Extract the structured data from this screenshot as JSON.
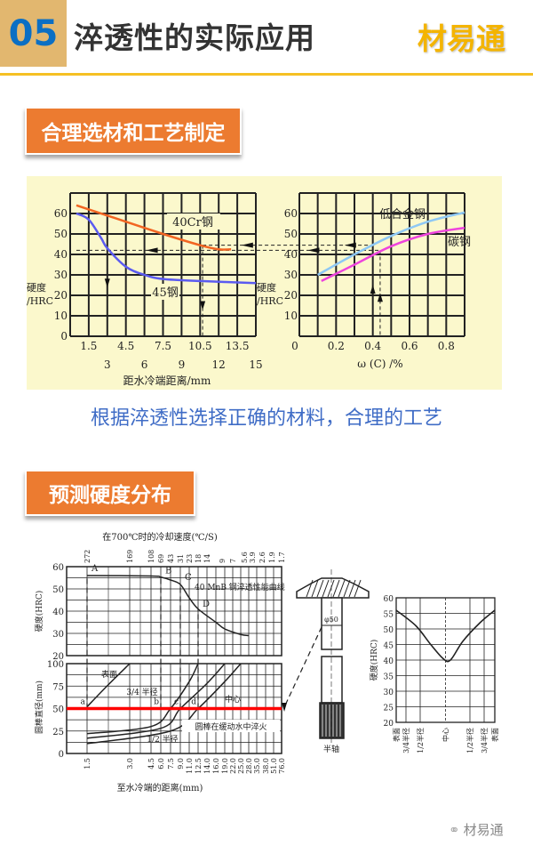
{
  "header": {
    "number": "05",
    "title": "淬透性的实际应用",
    "logo": "材易通",
    "accent": "#f5c024",
    "number_color": "#0b6fc4"
  },
  "section1": {
    "badge": "合理选材和工艺制定",
    "caption": "根据淬透性选择正确的材料，合理的工艺"
  },
  "section2": {
    "badge": "预测硬度分布"
  },
  "footer": {
    "icon": "wechat-icon",
    "label": "材易通"
  },
  "chart_data": [
    {
      "type": "line",
      "ylabel_lines": [
        "硬度",
        "/HRC"
      ],
      "xlabel": "距水冷端距离/mm",
      "x_ticks_row1": [
        "1.5",
        "4.5",
        "7.5",
        "10.5",
        "13.5"
      ],
      "x_ticks_row2": [
        "3",
        "6",
        "9",
        "12",
        "15"
      ],
      "y_ticks": [
        "0",
        "10",
        "20",
        "30",
        "40",
        "50",
        "60"
      ],
      "xlim": [
        0,
        15
      ],
      "ylim": [
        0,
        70
      ],
      "grid": true,
      "series": [
        {
          "name": "40Cr钢",
          "color": "#f26522",
          "x": [
            0.5,
            3,
            7.5,
            10.5,
            12,
            13
          ],
          "y": [
            64,
            59,
            50,
            44.5,
            42.5,
            42.5
          ]
        },
        {
          "name": "45钢",
          "color": "#5b5bf0",
          "x": [
            0.5,
            1.5,
            2.5,
            3,
            4.5,
            6,
            7.5,
            10.5,
            15
          ],
          "y": [
            60,
            57,
            48,
            43,
            34,
            30,
            28,
            27,
            26
          ]
        }
      ],
      "reference_lines": {
        "hardness": [
          42,
          44.5
        ],
        "distance": [
          3,
          10.7
        ]
      }
    },
    {
      "type": "line",
      "ylabel_lines": [
        "硬度",
        "/HRC"
      ],
      "xlabel": "ω (C) /%",
      "x_ticks": [
        "0",
        "0.2",
        "0.4",
        "0.6",
        "0.8"
      ],
      "y_ticks": [
        "10",
        "20",
        "30",
        "40",
        "50",
        "60"
      ],
      "xlim": [
        0,
        0.9
      ],
      "ylim": [
        0,
        70
      ],
      "grid": true,
      "series": [
        {
          "name": "低合金钢",
          "color": "#8ec8f5",
          "x": [
            0.1,
            0.3,
            0.5,
            0.7,
            0.9
          ],
          "y": [
            30,
            40,
            49,
            56,
            60.5
          ]
        },
        {
          "name": "碳钢",
          "color": "#ee44dd",
          "x": [
            0.12,
            0.3,
            0.5,
            0.7,
            0.9
          ],
          "y": [
            27,
            35,
            44,
            50,
            53
          ]
        }
      ],
      "reference_lines": {
        "carbon": [
          0.4,
          0.44
        ]
      }
    },
    {
      "type": "line",
      "title": "在700℃时的冷却速度(℃/S)",
      "top_ticks": [
        "272",
        "169",
        "108",
        "69",
        "43",
        "31",
        "23",
        "18",
        "14",
        "9",
        "7",
        "5.6",
        "3.9",
        "2.6",
        "1.9",
        "1.7"
      ],
      "x_ticks": [
        "1.5",
        "3.0",
        "4.5",
        "6.0",
        "7.5",
        "9.0",
        "11.0",
        "12.5",
        "14.0",
        "16.0",
        "19.0",
        "22.0",
        "25.0",
        "28.0",
        "35.0",
        "38.0",
        "51.0",
        "76.0"
      ],
      "xlabel": "至水冷端的距离(mm)",
      "upper": {
        "ylabel": "硬度(HRC)",
        "y_ticks": [
          "20",
          "30",
          "40",
          "50",
          "60"
        ],
        "ylim": [
          20,
          60
        ],
        "series": [
          {
            "name": "40 MnB 钢淬透性能曲线",
            "x": [
              1.5,
              4.5,
              6.0,
              7.5,
              9.0,
              11.0,
              12.5,
              16.0,
              19.0,
              25.0,
              28.0
            ],
            "y": [
              56,
              55.8,
              55.3,
              54,
              52,
              46,
              41,
              35,
              32,
              29.5,
              29
            ]
          }
        ],
        "points": [
          "A",
          "B",
          "C",
          "D"
        ]
      },
      "lower": {
        "ylabel": "圆棒直径(mm)",
        "y_ticks": [
          "0",
          "25",
          "50",
          "75",
          "100"
        ],
        "ylim": [
          0,
          100
        ],
        "series": [
          {
            "name": "表面",
            "x": [
              1.5,
              2.2,
              3.0
            ],
            "y": [
              52,
              75,
              100
            ]
          },
          {
            "name": "3/4 半径",
            "x": [
              1.5,
              4.5,
              7.5,
              11.0,
              12.5
            ],
            "y": [
              22,
              30,
              50,
              80,
              100
            ]
          },
          {
            "name": "1/2 半径",
            "x": [
              1.5,
              6.0,
              9.0,
              14.0,
              19.0
            ],
            "y": [
              17,
              28,
              50,
              78,
              100
            ]
          },
          {
            "name": "中心",
            "x": [
              1.5,
              7.5,
              12.5,
              19.0,
              25.0
            ],
            "y": [
              11,
              25,
              50,
              80,
              100
            ]
          }
        ],
        "note": "圆棒在缓动水中淬火",
        "highlight": {
          "diameter": 50,
          "color": "#ff0000"
        },
        "points": [
          "a",
          "b",
          "c",
          "d"
        ]
      }
    },
    {
      "type": "line",
      "part_label": "半轴",
      "diameter_label": "φ50",
      "ylabel": "硬度(HRC)",
      "y_ticks": [
        "20",
        "25",
        "30",
        "35",
        "40",
        "45",
        "50",
        "55",
        "60"
      ],
      "x_ticks": [
        "表面",
        "3/4半径",
        "1/2半径",
        "中心",
        "1/2半径",
        "3/4半径",
        "表面"
      ],
      "ylim": [
        20,
        60
      ],
      "series": [
        {
          "x": [
            -1,
            -0.6,
            -0.3,
            -0.05,
            0.1,
            0.35,
            0.7,
            1
          ],
          "y": [
            56,
            51,
            45,
            40.5,
            40,
            46,
            52,
            56
          ]
        }
      ]
    }
  ]
}
